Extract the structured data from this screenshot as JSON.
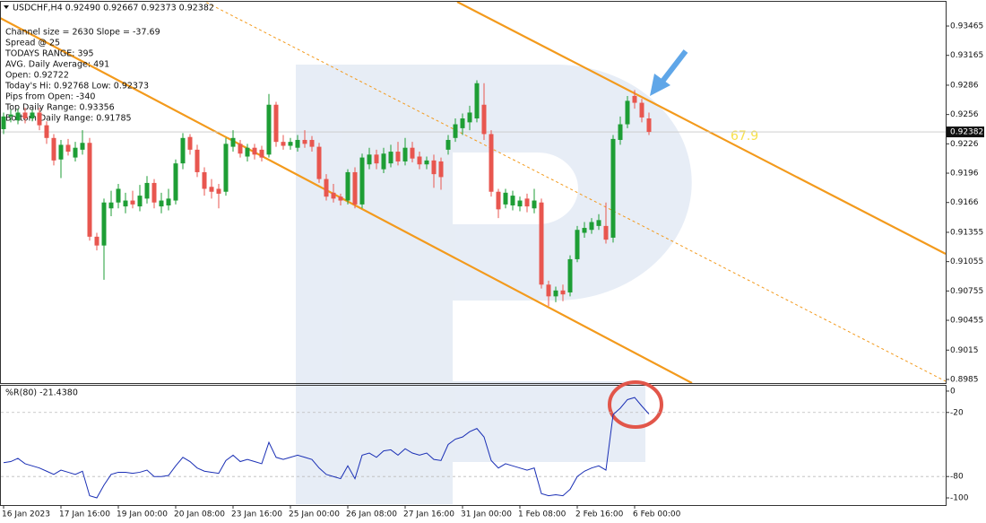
{
  "chart_data": [
    {
      "type": "candlestick",
      "title": "USDCHF,H4  0.92490 0.92667 0.92373 0.92382",
      "info_lines": [
        "Channel size = 2630 Slope = -37.69",
        "Spread @ 25",
        "TODAYS RANGE: 395",
        "AVG. Daily Average: 491",
        "Open: 0.92722",
        "Today's Hi: 0.92768  Low: 0.92373",
        "Pips from Open: -340",
        "Top Daily Range: 0.93356",
        "Bottom Daily Range: 0.91785"
      ],
      "annotations": [
        "67.9"
      ],
      "last_price": 0.92382,
      "up_color": "#1e9e35",
      "down_color": "#e8564f",
      "categories": [
        "16 Jan 2023",
        null,
        null,
        null,
        null,
        null,
        null,
        null,
        "17 Jan 16:00",
        null,
        null,
        null,
        null,
        null,
        null,
        null,
        "19 Jan 00:00",
        null,
        null,
        null,
        null,
        null,
        null,
        null,
        "20 Jan 08:00",
        null,
        null,
        null,
        null,
        null,
        null,
        null,
        "23 Jan 16:00",
        null,
        null,
        null,
        null,
        null,
        null,
        null,
        "25 Jan 00:00",
        null,
        null,
        null,
        null,
        null,
        null,
        null,
        "26 Jan 08:00",
        null,
        null,
        null,
        null,
        null,
        null,
        null,
        "27 Jan 16:00",
        null,
        null,
        null,
        null,
        null,
        null,
        null,
        "31 Jan 00:00",
        null,
        null,
        null,
        null,
        null,
        null,
        null,
        "1 Feb 08:00",
        null,
        null,
        null,
        null,
        null,
        null,
        null,
        "2 Feb 16:00",
        null,
        null,
        null,
        null,
        null,
        null,
        null,
        "6 Feb 00:00",
        null,
        null
      ],
      "open": [
        0.9241,
        0.9254,
        0.925,
        0.9258,
        0.9252,
        0.9258,
        0.9245,
        0.9232,
        0.921,
        0.9225,
        0.9212,
        0.922,
        0.9227,
        0.9131,
        0.9122,
        0.916,
        0.9166,
        0.9162,
        0.9168,
        0.9162,
        0.917,
        0.9186,
        0.9162,
        0.9163,
        0.9168,
        0.9206,
        0.9233,
        0.922,
        0.9197,
        0.9182,
        0.918,
        0.9177,
        0.9223,
        0.9226,
        0.9213,
        0.9222,
        0.922,
        0.9215,
        0.9266,
        0.9228,
        0.9224,
        0.9222,
        0.923,
        0.923,
        0.9223,
        0.919,
        0.9176,
        0.9172,
        0.9168,
        0.9197,
        0.9164,
        0.9205,
        0.9215,
        0.92,
        0.9206,
        0.9218,
        0.9208,
        0.9222,
        0.9213,
        0.9205,
        0.9209,
        0.9208,
        0.922,
        0.9232,
        0.9242,
        0.9248,
        0.9252,
        0.9266,
        0.9236,
        0.9177,
        0.9164,
        0.9163,
        0.9162,
        0.917,
        0.916,
        0.9166,
        0.9082,
        0.907,
        0.9076,
        0.9074,
        0.9108,
        0.9135,
        0.9138,
        0.9142,
        0.9142,
        0.913,
        0.923,
        0.9246,
        0.9275,
        0.9268,
        0.9252
      ],
      "high": [
        0.9258,
        0.9261,
        0.9262,
        0.9263,
        0.9261,
        0.9263,
        0.9249,
        0.9236,
        0.923,
        0.9231,
        0.9228,
        0.924,
        0.9232,
        0.9135,
        0.917,
        0.9178,
        0.9185,
        0.9176,
        0.9178,
        0.9184,
        0.9193,
        0.919,
        0.9176,
        0.918,
        0.921,
        0.9237,
        0.9236,
        0.9225,
        0.9202,
        0.919,
        0.9185,
        0.9232,
        0.924,
        0.923,
        0.9226,
        0.9226,
        0.9224,
        0.9277,
        0.9269,
        0.9235,
        0.9232,
        0.9235,
        0.924,
        0.9234,
        0.9227,
        0.9195,
        0.9185,
        0.9175,
        0.92,
        0.9202,
        0.9216,
        0.9222,
        0.922,
        0.9222,
        0.9225,
        0.9228,
        0.9232,
        0.9228,
        0.9218,
        0.9213,
        0.9215,
        0.9212,
        0.9235,
        0.9252,
        0.9257,
        0.9265,
        0.9291,
        0.9288,
        0.924,
        0.918,
        0.918,
        0.9178,
        0.9172,
        0.9175,
        0.918,
        0.917,
        0.9086,
        0.908,
        0.9082,
        0.9112,
        0.9142,
        0.9146,
        0.915,
        0.9154,
        0.9166,
        0.9235,
        0.9254,
        0.9275,
        0.9281,
        0.9272,
        0.9258
      ],
      "low": [
        0.9236,
        0.9248,
        0.9246,
        0.9247,
        0.9249,
        0.924,
        0.9226,
        0.9204,
        0.9191,
        0.9214,
        0.9208,
        0.9215,
        0.9127,
        0.9117,
        0.9087,
        0.9152,
        0.916,
        0.9155,
        0.916,
        0.9157,
        0.9165,
        0.916,
        0.9155,
        0.9158,
        0.9164,
        0.92,
        0.9215,
        0.9192,
        0.9173,
        0.917,
        0.916,
        0.9173,
        0.9218,
        0.9212,
        0.9208,
        0.921,
        0.9208,
        0.9212,
        0.9223,
        0.922,
        0.922,
        0.9218,
        0.9222,
        0.9218,
        0.9186,
        0.9168,
        0.9166,
        0.9163,
        0.9164,
        0.916,
        0.916,
        0.92,
        0.92,
        0.9196,
        0.9202,
        0.9204,
        0.9204,
        0.9207,
        0.92,
        0.92,
        0.9181,
        0.9179,
        0.9215,
        0.9228,
        0.9235,
        0.924,
        0.9248,
        0.923,
        0.9172,
        0.915,
        0.916,
        0.9158,
        0.9157,
        0.9156,
        0.9155,
        0.9078,
        0.906,
        0.9064,
        0.9065,
        0.907,
        0.9105,
        0.913,
        0.9134,
        0.9138,
        0.9124,
        0.9125,
        0.9225,
        0.9242,
        0.9262,
        0.9248,
        0.9235
      ],
      "close": [
        0.9254,
        0.9256,
        0.9258,
        0.9252,
        0.9258,
        0.9245,
        0.9232,
        0.9209,
        0.9225,
        0.9218,
        0.9222,
        0.9227,
        0.9131,
        0.9122,
        0.9166,
        0.9166,
        0.918,
        0.9168,
        0.9164,
        0.9173,
        0.9186,
        0.9166,
        0.9168,
        0.917,
        0.9206,
        0.9232,
        0.922,
        0.9197,
        0.918,
        0.9177,
        0.9175,
        0.9226,
        0.9232,
        0.9216,
        0.9222,
        0.9215,
        0.9212,
        0.9266,
        0.9228,
        0.9224,
        0.9228,
        0.923,
        0.9226,
        0.9223,
        0.919,
        0.9172,
        0.917,
        0.9168,
        0.9197,
        0.9164,
        0.9212,
        0.9215,
        0.9206,
        0.9216,
        0.9218,
        0.9208,
        0.9222,
        0.9211,
        0.9205,
        0.9209,
        0.9195,
        0.9192,
        0.923,
        0.9246,
        0.9252,
        0.9258,
        0.9288,
        0.9236,
        0.9177,
        0.9159,
        0.9176,
        0.9173,
        0.9168,
        0.9162,
        0.9168,
        0.9082,
        0.907,
        0.9076,
        0.9072,
        0.9108,
        0.9138,
        0.914,
        0.9146,
        0.9148,
        0.9128,
        0.9231,
        0.9246,
        0.927,
        0.9268,
        0.9253,
        0.92382
      ],
      "ylim": [
        0.89813,
        0.93713
      ],
      "yticks": [
        0.93465,
        0.93165,
        0.9286,
        0.9256,
        0.9226,
        0.9196,
        0.9166,
        0.91355,
        0.91055,
        0.90755,
        0.90455,
        0.9015,
        0.8985
      ]
    },
    {
      "type": "line",
      "title": "%R(80) -21.4380",
      "color": "#1a2fb5",
      "values": [
        -67,
        -66,
        -63,
        -68,
        -70,
        -72,
        -75,
        -78,
        -74,
        -76,
        -78,
        -75,
        -98,
        -100,
        -88,
        -78,
        -76,
        -76,
        -77,
        -76,
        -74,
        -80,
        -80,
        -79,
        -70,
        -62,
        -66,
        -72,
        -75,
        -76,
        -77,
        -65,
        -60,
        -66,
        -64,
        -66,
        -68,
        -48,
        -62,
        -64,
        -62,
        -60,
        -62,
        -64,
        -72,
        -78,
        -80,
        -82,
        -70,
        -82,
        -60,
        -58,
        -62,
        -56,
        -55,
        -60,
        -54,
        -58,
        -60,
        -58,
        -64,
        -65,
        -50,
        -45,
        -43,
        -38,
        -35,
        -43,
        -65,
        -72,
        -68,
        -70,
        -72,
        -74,
        -72,
        -96,
        -98,
        -97,
        -98,
        -92,
        -80,
        -75,
        -72,
        -70,
        -74,
        -22,
        -16,
        -8,
        -6,
        -14,
        -21.438
      ],
      "ylim": [
        -106.7,
        5
      ],
      "yticks": [
        0,
        -20,
        -80,
        -100
      ],
      "grid_ticks": [
        -20,
        -80
      ]
    }
  ]
}
